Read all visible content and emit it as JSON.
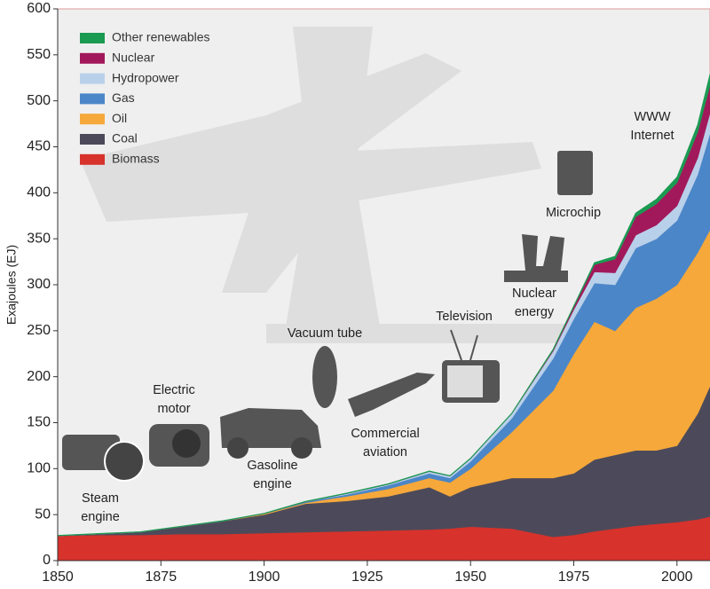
{
  "chart_data": {
    "type": "stacked_area",
    "y_label": "Exajoules (EJ)",
    "x": [
      1850,
      1860,
      1870,
      1880,
      1890,
      1900,
      1910,
      1920,
      1930,
      1940,
      1945,
      1950,
      1960,
      1970,
      1975,
      1980,
      1985,
      1990,
      1995,
      2000,
      2005,
      2008
    ],
    "series": [
      {
        "name": "Biomass",
        "color": "#d7322c",
        "values": [
          27,
          28,
          28,
          29,
          29,
          30,
          31,
          32,
          33,
          34,
          35,
          37,
          35,
          26,
          28,
          32,
          35,
          38,
          40,
          42,
          45,
          48
        ]
      },
      {
        "name": "Coal",
        "color": "#4c4a5a",
        "values": [
          0,
          1,
          3,
          8,
          14,
          20,
          31,
          33,
          37,
          46,
          35,
          43,
          55,
          64,
          67,
          78,
          80,
          82,
          80,
          83,
          115,
          142
        ]
      },
      {
        "name": "Oil",
        "color": "#f6a83a",
        "values": [
          0,
          0,
          0,
          0,
          0,
          1,
          1,
          5,
          8,
          10,
          15,
          20,
          50,
          95,
          130,
          150,
          135,
          155,
          165,
          175,
          175,
          170
        ]
      },
      {
        "name": "Gas",
        "color": "#4b86c8",
        "values": [
          0,
          0,
          0,
          0,
          0,
          0,
          1,
          2,
          4,
          5,
          5,
          8,
          15,
          35,
          38,
          42,
          50,
          65,
          65,
          70,
          85,
          105
        ]
      },
      {
        "name": "Hydropower",
        "color": "#b9d0ea",
        "values": [
          0,
          0,
          0,
          0,
          0,
          0,
          0,
          1,
          1,
          2,
          2,
          3,
          5,
          8,
          10,
          12,
          13,
          14,
          15,
          16,
          18,
          22
        ]
      },
      {
        "name": "Nuclear",
        "color": "#a2195b",
        "values": [
          0,
          0,
          0,
          0,
          0,
          0,
          0,
          0,
          0,
          0,
          0,
          0,
          0,
          1,
          3,
          8,
          15,
          20,
          23,
          25,
          28,
          30
        ]
      },
      {
        "name": "Other renewables",
        "color": "#1b9a52",
        "values": [
          0.5,
          0.5,
          0.5,
          0.5,
          0.5,
          0.5,
          0.5,
          0.5,
          0.5,
          0.5,
          0.5,
          0.5,
          0.5,
          1,
          1,
          2,
          3,
          4,
          5,
          6,
          8,
          12
        ]
      }
    ],
    "xlim": [
      1850,
      2008
    ],
    "ylim": [
      0,
      600
    ],
    "xticks": [
      1850,
      1875,
      1900,
      1925,
      1950,
      1975,
      2000
    ],
    "yticks": [
      0,
      50,
      100,
      150,
      200,
      250,
      300,
      350,
      400,
      450,
      500,
      550,
      600
    ],
    "legend": "top-left",
    "annotations": [
      {
        "lines": [
          "Steam",
          "engine"
        ]
      },
      {
        "lines": [
          "Electric",
          "motor"
        ]
      },
      {
        "lines": [
          "Gasoline",
          "engine"
        ]
      },
      {
        "lines": [
          "Vacuum tube"
        ]
      },
      {
        "lines": [
          "Commercial",
          "aviation"
        ]
      },
      {
        "lines": [
          "Television"
        ]
      },
      {
        "lines": [
          "Nuclear",
          "energy"
        ]
      },
      {
        "lines": [
          "Microchip"
        ]
      },
      {
        "lines": [
          "WWW",
          "Internet"
        ]
      }
    ]
  }
}
